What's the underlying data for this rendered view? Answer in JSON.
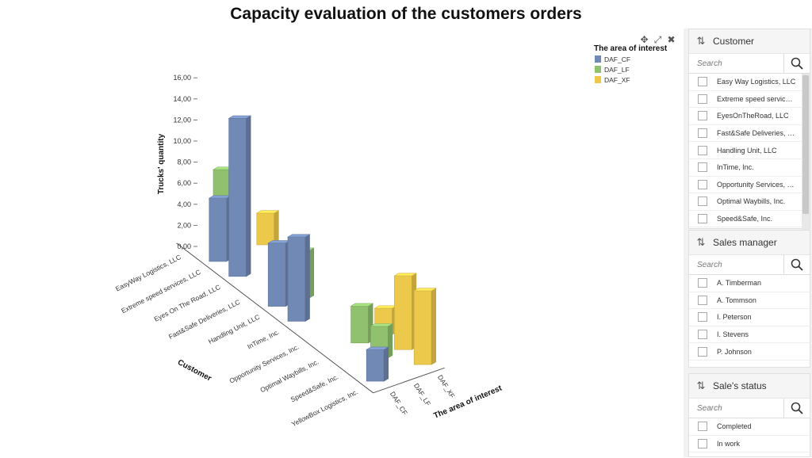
{
  "chart_data": {
    "type": "bar3d",
    "title": "Capacity evaluation of the customers orders",
    "ylabel": "Trucks' quantity",
    "xlabel": "Customer",
    "zlabel": "The area of interest",
    "ylim": [
      0,
      16
    ],
    "yticks": [
      "0,00",
      "2,00",
      "4,00",
      "6,00",
      "8,00",
      "10,00",
      "12,00",
      "14,00",
      "16,00"
    ],
    "categories": [
      "EasyWay Logistics, LLC",
      "Extreme speed services, LLC",
      "Eyes On The Road, LLC",
      "Fast&Safe Deliveries, LLC",
      "Handling Unit, LLC",
      "InTime, Inc.",
      "Opportunity Services, Inc.",
      "Optimal Waybills, Inc.",
      "Speed&Safe, Inc.",
      "YellowBox Logistics, Inc."
    ],
    "legend_title": "The area of interest",
    "series": [
      {
        "name": "DAF_CF",
        "color": "#7189b5",
        "values": [
          0,
          6,
          15,
          0,
          6,
          8,
          0,
          0,
          0,
          3
        ]
      },
      {
        "name": "DAF_LF",
        "color": "#8fc16e",
        "values": [
          6.5,
          0,
          0,
          0,
          4.5,
          0,
          0,
          3.5,
          3,
          0
        ]
      },
      {
        "name": "DAF_XF",
        "color": "#ecc94b",
        "values": [
          0,
          3,
          0,
          0,
          0,
          0,
          0,
          2.5,
          7,
          7
        ]
      }
    ]
  },
  "filters": [
    {
      "title": "Customer",
      "search_placeholder": "Search",
      "items": [
        "Easy Way Logistics, LLC",
        "Extreme speed services, LLC",
        "EyesOnTheRoad, LLC",
        "Fast&Safe Deliveries, LLC",
        "Handling Unit, LLC",
        "InTime, Inc.",
        "Opportunity Services, Inc.",
        "Optimal Waybills, Inc.",
        "Speed&Safe, Inc."
      ]
    },
    {
      "title": "Sales manager",
      "search_placeholder": "Search",
      "items": [
        "A. Timberman",
        "A. Tommson",
        "I. Peterson",
        "I. Stevens",
        "P. Johnson"
      ]
    },
    {
      "title": "Sale's status",
      "search_placeholder": "Search",
      "items": [
        "Completed",
        "In work"
      ]
    }
  ]
}
